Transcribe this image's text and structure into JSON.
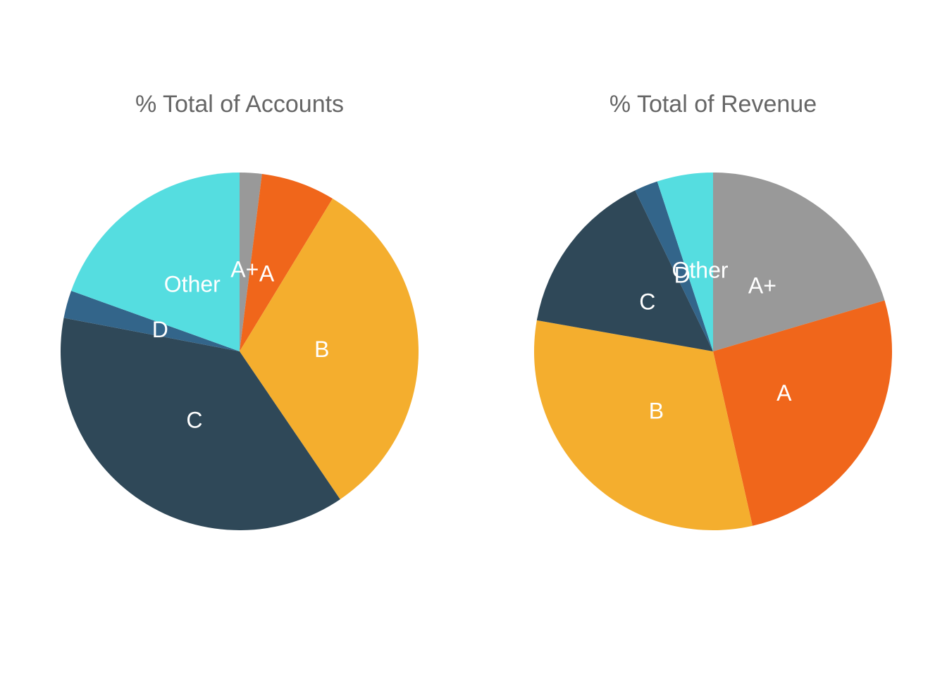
{
  "chart_data": [
    {
      "type": "pie",
      "title": "% Total of Accounts",
      "direction": "clockwise",
      "start": "12 o'clock",
      "slices": [
        {
          "label": "A+",
          "value": 2.0,
          "color": "#999999"
        },
        {
          "label": "A",
          "value": 6.7,
          "color": "#f0661b"
        },
        {
          "label": "B",
          "value": 31.8,
          "color": "#f4ae2e"
        },
        {
          "label": "C",
          "value": 37.5,
          "color": "#2f4858"
        },
        {
          "label": "D",
          "value": 2.5,
          "color": "#33658a"
        },
        {
          "label": "Other",
          "value": 19.5,
          "color": "#55dde0"
        }
      ]
    },
    {
      "type": "pie",
      "title": "% Total of Revenue",
      "direction": "clockwise",
      "start": "12 o'clock",
      "slices": [
        {
          "label": "A+",
          "value": 20.2,
          "color": "#999999"
        },
        {
          "label": "A",
          "value": 25.8,
          "color": "#f0661b"
        },
        {
          "label": "B",
          "value": 31.0,
          "color": "#f4ae2e"
        },
        {
          "label": "C",
          "value": 14.9,
          "color": "#2f4858"
        },
        {
          "label": "D",
          "value": 2.1,
          "color": "#33658a"
        },
        {
          "label": "Other",
          "value": 5.0,
          "color": "#55dde0"
        }
      ]
    }
  ]
}
